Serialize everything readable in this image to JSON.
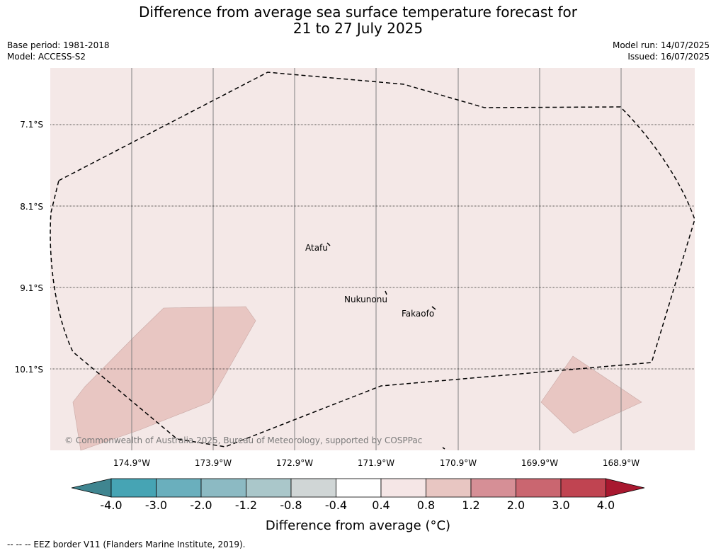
{
  "title_line1": "Difference from average sea surface temperature forecast for",
  "title_line2": "21 to 27 July 2025",
  "base_period": "Base period: 1981-2018",
  "model": "Model: ACCESS-S2",
  "model_run": "Model run: 14/07/2025",
  "issued": "Issued: 16/07/2025",
  "lat_labels": [
    "7.1°S",
    "8.1°S",
    "9.1°S",
    "10.1°S"
  ],
  "lon_labels": [
    "174.9°W",
    "173.9°W",
    "172.9°W",
    "171.9°W",
    "170.9°W",
    "169.9°W",
    "168.9°W"
  ],
  "places": [
    "Atafu",
    "Nukunonu",
    "Fakaofo"
  ],
  "copyright": "© Commonwealth of Australia 2025, Bureau of Meteorology, supported by COSPPac",
  "colorbar": {
    "ticks": [
      "-4.0",
      "-3.0",
      "-2.0",
      "-1.2",
      "-0.8",
      "-0.4",
      "0.4",
      "0.8",
      "1.2",
      "2.0",
      "3.0",
      "4.0"
    ],
    "colors": [
      "#3f8590",
      "#46a4b4",
      "#6aafbd",
      "#8cbac3",
      "#aac7ca",
      "#d0d6d6",
      "#ffffff",
      "#f5e6e6",
      "#e8c6c2",
      "#d68f96",
      "#ca6670",
      "#c04451",
      "#a8182f"
    ],
    "label": "Difference from average (°C)"
  },
  "map_colors": {
    "background": "#f4e8e7",
    "anomaly_patch": "#e8c6c2"
  },
  "footer": "--  --  -- EEZ border V11 (Flanders Marine Institute, 2019)."
}
